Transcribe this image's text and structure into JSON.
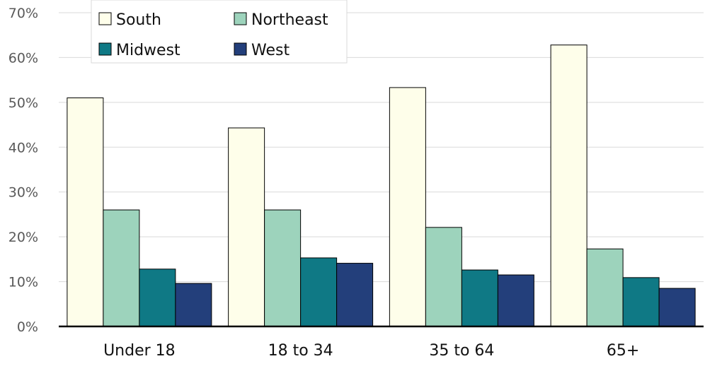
{
  "chart_data": {
    "type": "bar",
    "title": "",
    "xlabel": "",
    "ylabel": "",
    "categories": [
      "Under 18",
      "18 to 34",
      "35 to 64",
      "65+"
    ],
    "series": [
      {
        "name": "South",
        "color": "#fefeea",
        "values": [
          51,
          44.3,
          53.3,
          62.8
        ]
      },
      {
        "name": "Northeast",
        "color": "#9dd3bc",
        "values": [
          26,
          26,
          22.1,
          17.3
        ]
      },
      {
        "name": "Midwest",
        "color": "#0f7985",
        "values": [
          12.8,
          15.3,
          12.6,
          10.9
        ]
      },
      {
        "name": "West",
        "color": "#233f7b",
        "values": [
          9.6,
          14.1,
          11.5,
          8.5
        ]
      }
    ],
    "ylim": [
      0,
      70
    ],
    "yticks": [
      "0%",
      "10%",
      "20%",
      "30%",
      "40%",
      "50%",
      "60%",
      "70%"
    ],
    "grid": true,
    "legend_position": "top-left"
  }
}
